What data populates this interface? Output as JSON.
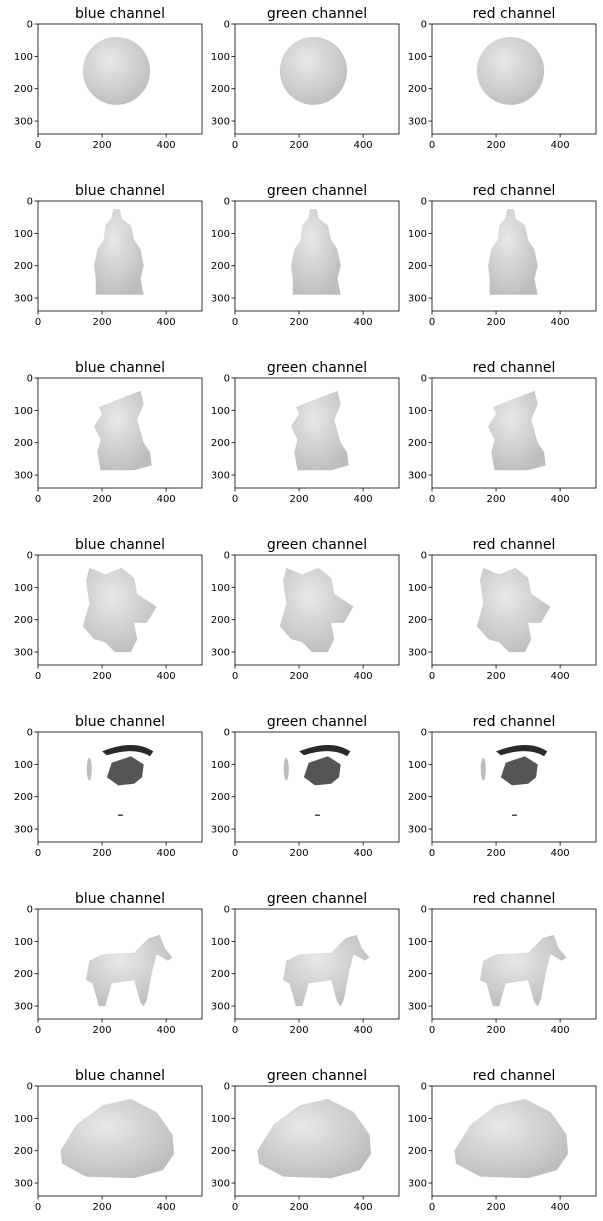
{
  "chart_data": {
    "type": "image-grid",
    "rows": 7,
    "cols": 3,
    "column_titles": [
      "blue channel",
      "green channel",
      "red channel"
    ],
    "x_ticks": [
      "0",
      "200",
      "400"
    ],
    "y_ticks": [
      "0",
      "100",
      "200",
      "300"
    ],
    "xlim": [
      0,
      512
    ],
    "ylim": [
      340,
      0
    ],
    "row_subjects": [
      "sphere",
      "buddha",
      "cat",
      "owl",
      "unknown-dark-object",
      "horse",
      "rock"
    ],
    "panels_per_row": 3
  },
  "colors": {
    "background": "#ffffff",
    "axis": "#000000",
    "object_light": "#e8e8e8",
    "object_mid": "#bdbdbd",
    "object_dark": "#2a2a2a"
  }
}
